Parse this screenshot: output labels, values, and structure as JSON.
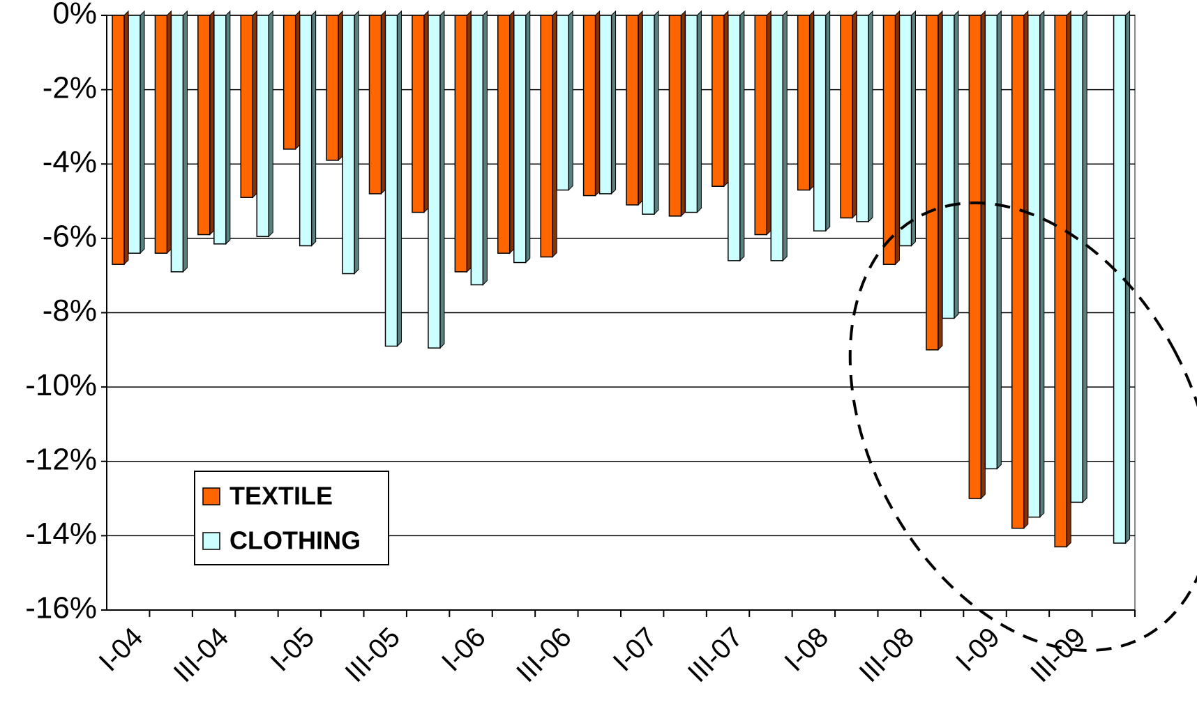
{
  "chart_data": {
    "type": "bar",
    "categories": [
      "I-04",
      null,
      "III-04",
      null,
      "I-05",
      null,
      "III-05",
      null,
      "I-06",
      null,
      "III-06",
      null,
      "I-07",
      null,
      "III-07",
      null,
      "I-08",
      null,
      "III-08",
      null,
      "I-09",
      null,
      "III-09",
      null
    ],
    "series": [
      {
        "name": "TEXTILE",
        "color": "#ff6600",
        "values": [
          -6.7,
          -6.4,
          -5.9,
          -4.9,
          -3.6,
          -3.9,
          -4.8,
          -5.3,
          -6.9,
          -6.4,
          -6.5,
          -4.85,
          -5.1,
          -5.4,
          -4.6,
          -5.9,
          -4.7,
          -5.45,
          -6.7,
          -9.0,
          -13.0,
          -13.8,
          -14.3,
          null
        ]
      },
      {
        "name": "CLOTHING",
        "color": "#ccffff",
        "values": [
          -6.4,
          -6.9,
          -6.15,
          -5.95,
          -6.2,
          -6.95,
          -8.9,
          -8.95,
          -7.25,
          -6.65,
          -4.7,
          -4.8,
          -5.35,
          -5.3,
          -6.6,
          -6.6,
          -5.8,
          -5.55,
          -6.2,
          -8.15,
          -12.2,
          -13.5,
          -13.1,
          -14.2
        ]
      }
    ],
    "ylim": [
      -16,
      0
    ],
    "yticks": [
      {
        "value": 0,
        "label": "0%"
      },
      {
        "value": -2,
        "label": "-2%"
      },
      {
        "value": -4,
        "label": "-4%"
      },
      {
        "value": -6,
        "label": "-6%"
      },
      {
        "value": -8,
        "label": "-8%"
      },
      {
        "value": -10,
        "label": "-10%"
      },
      {
        "value": -12,
        "label": "-12%"
      },
      {
        "value": -14,
        "label": "-14%"
      },
      {
        "value": -16,
        "label": "-16%"
      }
    ],
    "grid": true,
    "legend": "lower left"
  }
}
